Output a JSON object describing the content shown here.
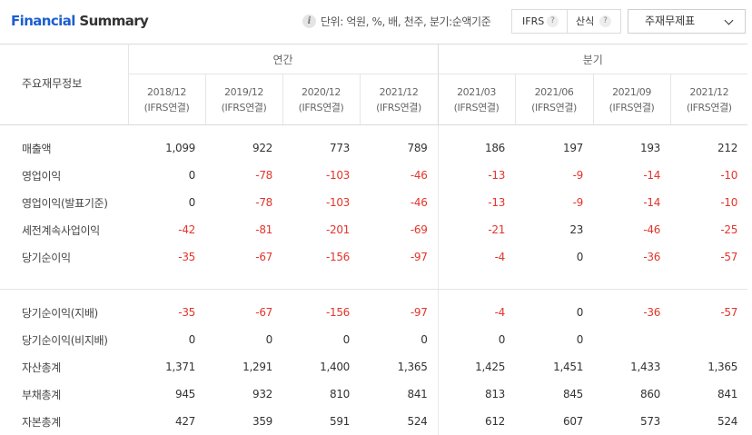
{
  "header": {
    "title_part1": "Financial",
    "title_part2": " Summary",
    "unit_text": "단위: 억원, %, 배, 천주, 분기:순액기준",
    "option_ifrs": "IFRS",
    "option_sansik": "산식",
    "help_glyph": "?",
    "select_value": "주재무제표"
  },
  "table": {
    "row_header_label": "주요재무정보",
    "group_annual": "연간",
    "group_quarterly": "분기",
    "periods": [
      {
        "date": "2018/12",
        "basis": "(IFRS연결)"
      },
      {
        "date": "2019/12",
        "basis": "(IFRS연결)"
      },
      {
        "date": "2020/12",
        "basis": "(IFRS연결)"
      },
      {
        "date": "2021/12",
        "basis": "(IFRS연결)"
      },
      {
        "date": "2021/03",
        "basis": "(IFRS연결)"
      },
      {
        "date": "2021/06",
        "basis": "(IFRS연결)"
      },
      {
        "date": "2021/09",
        "basis": "(IFRS연결)"
      },
      {
        "date": "2021/12",
        "basis": "(IFRS연결)"
      }
    ],
    "rows_group1": [
      {
        "label": "매출액",
        "values": [
          "1,099",
          "922",
          "773",
          "789",
          "186",
          "197",
          "193",
          "212"
        ]
      },
      {
        "label": "영업이익",
        "values": [
          "0",
          "-78",
          "-103",
          "-46",
          "-13",
          "-9",
          "-14",
          "-10"
        ]
      },
      {
        "label": "영업이익(발표기준)",
        "values": [
          "0",
          "-78",
          "-103",
          "-46",
          "-13",
          "-9",
          "-14",
          "-10"
        ]
      },
      {
        "label": "세전계속사업이익",
        "values": [
          "-42",
          "-81",
          "-201",
          "-69",
          "-21",
          "23",
          "-46",
          "-25"
        ]
      },
      {
        "label": "당기순이익",
        "values": [
          "-35",
          "-67",
          "-156",
          "-97",
          "-4",
          "0",
          "-36",
          "-57"
        ]
      }
    ],
    "rows_group2": [
      {
        "label": "당기순이익(지배)",
        "values": [
          "-35",
          "-67",
          "-156",
          "-97",
          "-4",
          "0",
          "-36",
          "-57"
        ]
      },
      {
        "label": "당기순이익(비지배)",
        "values": [
          "0",
          "0",
          "0",
          "0",
          "0",
          "0",
          "",
          ""
        ]
      },
      {
        "label": "자산총계",
        "values": [
          "1,371",
          "1,291",
          "1,400",
          "1,365",
          "1,425",
          "1,451",
          "1,433",
          "1,365"
        ]
      },
      {
        "label": "부채총계",
        "values": [
          "945",
          "932",
          "810",
          "841",
          "813",
          "845",
          "860",
          "841"
        ]
      },
      {
        "label": "자본총계",
        "values": [
          "427",
          "359",
          "591",
          "524",
          "612",
          "607",
          "573",
          "524"
        ]
      }
    ]
  },
  "colors": {
    "accent": "#1c5fcf",
    "negative": "#e2352c"
  }
}
